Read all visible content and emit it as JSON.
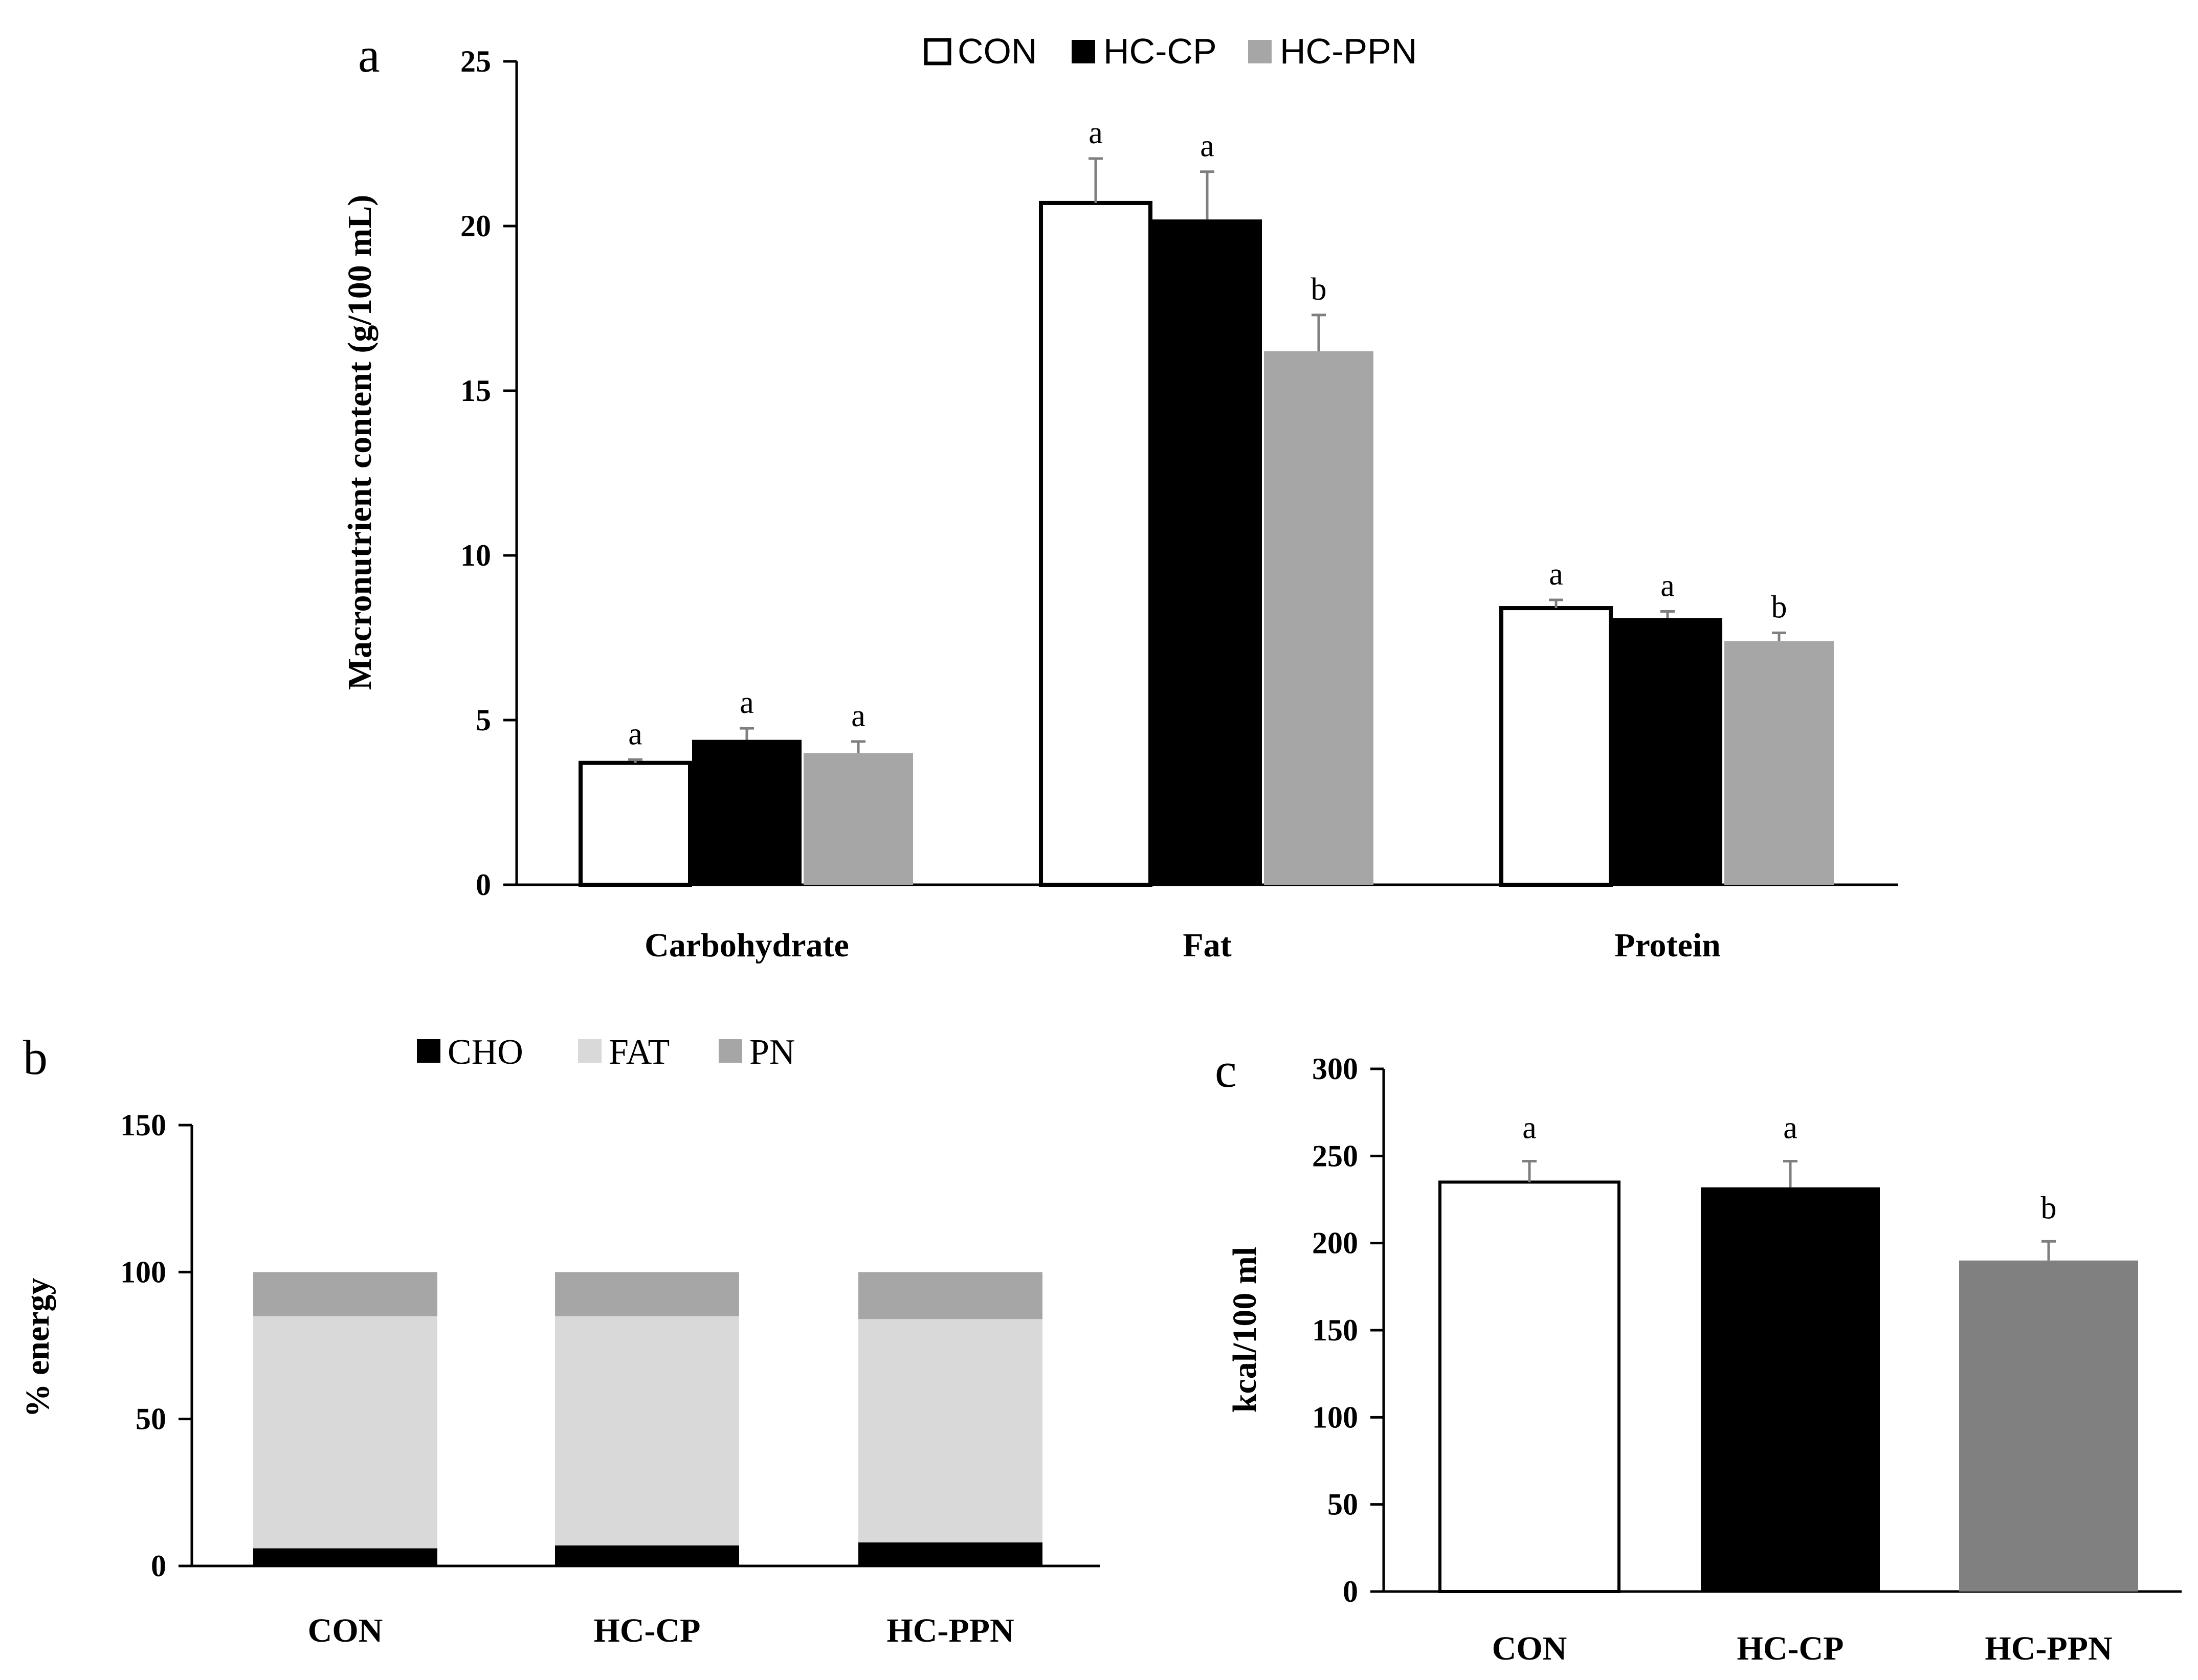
{
  "colors": {
    "con": "#ffffff",
    "hc_cp": "#000000",
    "hc_ppn_a": "#a6a6a6",
    "hc_ppn_c": "#808080",
    "cho": "#000000",
    "fat": "#d9d9d9",
    "pn": "#a6a6a6",
    "axis": "#000000",
    "error": "#7f7f7f"
  },
  "chart_data": [
    {
      "id": "a",
      "panel_label": "a",
      "type": "bar",
      "categories": [
        "Carbohydrate",
        "Fat",
        "Protein"
      ],
      "series": [
        {
          "name": "CON",
          "values": [
            3.7,
            20.7,
            8.4
          ],
          "errors": [
            0.1,
            1.35,
            0.25
          ],
          "letters": [
            "a",
            "a",
            "a"
          ],
          "color_key": "con"
        },
        {
          "name": "HC-CP",
          "values": [
            4.4,
            20.2,
            8.1
          ],
          "errors": [
            0.35,
            1.45,
            0.2
          ],
          "letters": [
            "a",
            "a",
            "a"
          ],
          "color_key": "hc_cp"
        },
        {
          "name": "HC-PPN",
          "values": [
            4.0,
            16.2,
            7.4
          ],
          "errors": [
            0.35,
            1.1,
            0.25
          ],
          "letters": [
            "a",
            "b",
            "b"
          ],
          "color_key": "hc_ppn_a"
        }
      ],
      "ylabel": "Macronutrient content (g/100 mL)",
      "xlabel": "",
      "ylim": [
        0,
        25
      ],
      "yticks": [
        0,
        5,
        10,
        15,
        20,
        25
      ],
      "legend": "top-center"
    },
    {
      "id": "b",
      "panel_label": "b",
      "type": "bar",
      "stacked": true,
      "categories": [
        "CON",
        "HC-CP",
        "HC-PPN"
      ],
      "series": [
        {
          "name": "CHO",
          "values": [
            6,
            7,
            8
          ],
          "color_key": "cho"
        },
        {
          "name": "FAT",
          "values": [
            79,
            78,
            76
          ],
          "color_key": "fat"
        },
        {
          "name": "PN",
          "values": [
            15,
            15,
            16
          ],
          "color_key": "pn"
        }
      ],
      "ylabel": "% energy",
      "xlabel": "",
      "ylim": [
        0,
        150
      ],
      "yticks": [
        0,
        50,
        100,
        150
      ],
      "legend": "top-center"
    },
    {
      "id": "c",
      "panel_label": "c",
      "type": "bar",
      "categories": [
        "CON",
        "HC-CP",
        "HC-PPN"
      ],
      "values": [
        235,
        232,
        190
      ],
      "errors": [
        12,
        15,
        11
      ],
      "letters": [
        "a",
        "a",
        "b"
      ],
      "color_keys": [
        "con",
        "hc_cp",
        "hc_ppn_c"
      ],
      "ylabel": "kcal/100 ml",
      "xlabel": "",
      "ylim": [
        0,
        300
      ],
      "yticks": [
        0,
        50,
        100,
        150,
        200,
        250,
        300
      ]
    }
  ]
}
